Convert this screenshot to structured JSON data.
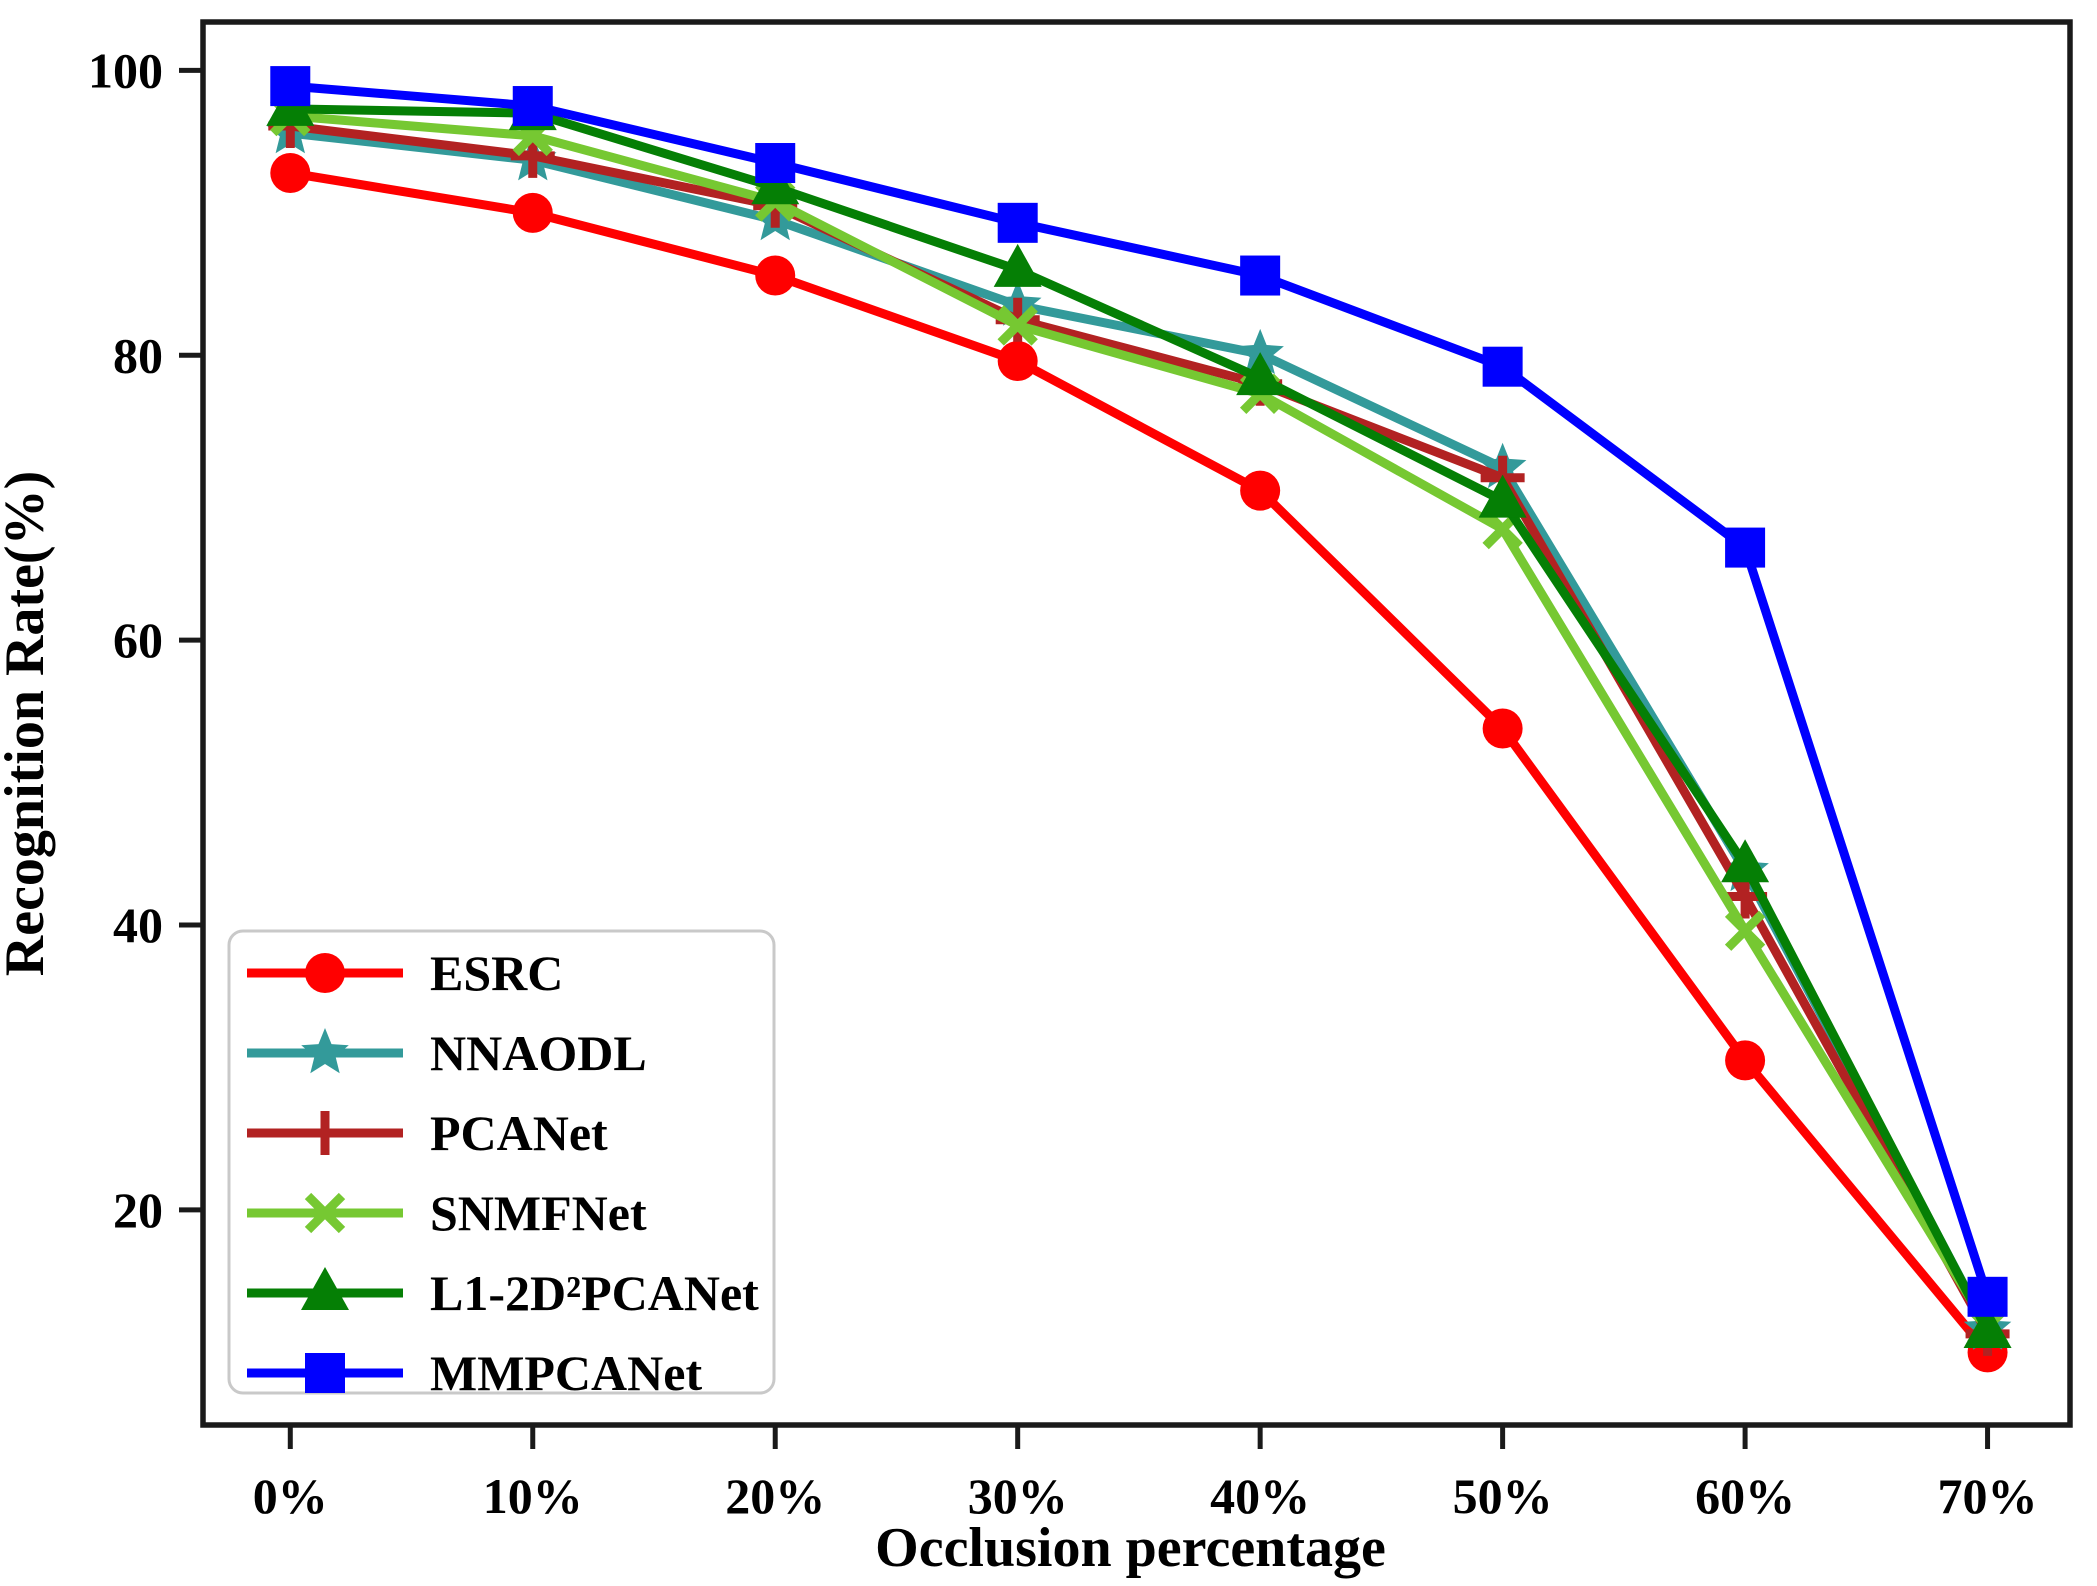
{
  "chart_data": {
    "type": "line",
    "title": "",
    "xlabel": "Occlusion percentage",
    "ylabel": "Recognition Rate(%)",
    "categories": [
      "0%",
      "10%",
      "20%",
      "30%",
      "40%",
      "50%",
      "60%",
      "70%"
    ],
    "y_ticks": [
      20,
      40,
      60,
      80,
      100
    ],
    "ylim": [
      4.9,
      103.4
    ],
    "xlim_index_units": [
      -0.36,
      7.34
    ],
    "grid": false,
    "legend_position": "lower-left",
    "background_color": "#FFFFFF",
    "axis_color": "#1A1A1A",
    "series": [
      {
        "name": "ESRC",
        "color": "#FF0000",
        "marker": "circle",
        "values": [
          92.8,
          90.0,
          85.6,
          79.6,
          70.5,
          53.8,
          30.5,
          10.0
        ]
      },
      {
        "name": "NNAODL",
        "color": "#339A9A",
        "marker": "star",
        "values": [
          95.6,
          93.7,
          89.5,
          83.5,
          80.1,
          72.1,
          43.8,
          11.6
        ]
      },
      {
        "name": "PCANet",
        "color": "#B22222",
        "marker": "plus",
        "values": [
          96.1,
          94.0,
          90.5,
          82.5,
          78.0,
          71.4,
          42.0,
          11.3
        ]
      },
      {
        "name": "SNMFNet",
        "color": "#76C832",
        "marker": "x",
        "values": [
          96.8,
          95.4,
          90.8,
          82.1,
          77.3,
          67.8,
          39.6,
          11.8
        ]
      },
      {
        "name": "L1-2D²PCANet",
        "color": "#057F05",
        "marker": "triangle-up",
        "values": [
          97.3,
          97.0,
          91.8,
          86.0,
          78.4,
          69.8,
          44.2,
          11.5
        ]
      },
      {
        "name": "MMPCANet",
        "color": "#0000FF",
        "marker": "square",
        "values": [
          98.9,
          97.5,
          93.5,
          89.3,
          85.6,
          79.2,
          66.5,
          13.9
        ]
      }
    ],
    "legend_border_color": "#C9C9C9"
  }
}
